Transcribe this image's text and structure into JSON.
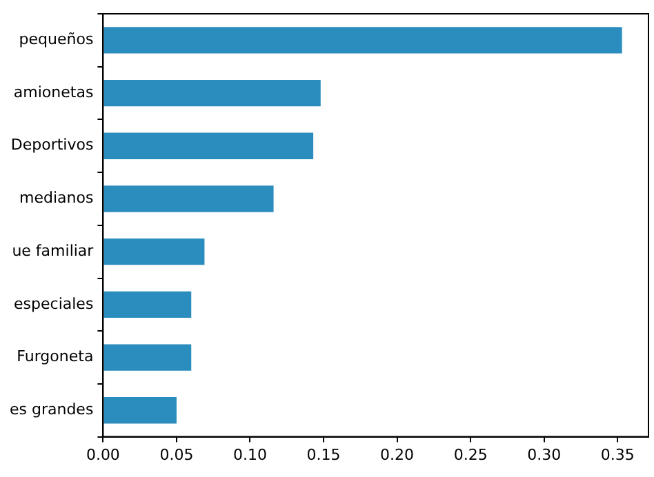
{
  "chart_data": {
    "type": "bar",
    "orientation": "horizontal",
    "categories": [
      "pequeños",
      "amionetas",
      "Deportivos",
      "medianos",
      "ue familiar",
      "especiales",
      "Furgoneta",
      "es grandes"
    ],
    "values": [
      0.353,
      0.148,
      0.143,
      0.116,
      0.069,
      0.06,
      0.06,
      0.05
    ],
    "color": "#2b8cbe",
    "xlim": [
      0,
      0.371
    ],
    "xticks": [
      {
        "value": 0,
        "label": "0.00"
      },
      0.05,
      {
        "value": 0.1,
        "label": "0.10"
      },
      0.15,
      {
        "value": 0.2,
        "label": "0.20"
      },
      0.25,
      {
        "value": 0.3,
        "label": "0.30"
      },
      0.35
    ],
    "grid": false,
    "legend": false
  }
}
